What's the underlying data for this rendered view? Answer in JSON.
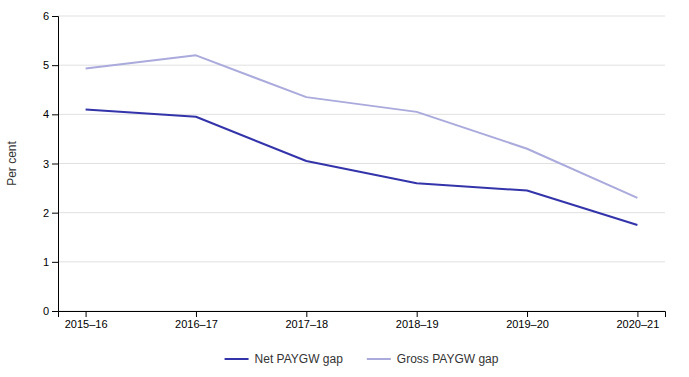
{
  "chart_data": {
    "type": "line",
    "categories": [
      "2015–16",
      "2016–17",
      "2017–18",
      "2018–19",
      "2019–20",
      "2020–21"
    ],
    "series": [
      {
        "name": "Net PAYGW gap",
        "color": "#3333aa",
        "values": [
          4.1,
          3.95,
          3.05,
          2.6,
          2.45,
          1.75
        ]
      },
      {
        "name": "Gross PAYGW gap",
        "color": "#aaaadd",
        "values": [
          4.93,
          5.2,
          4.35,
          4.05,
          3.3,
          2.3
        ]
      }
    ],
    "y_label": "Per cent",
    "ylim": [
      0,
      6
    ],
    "yticks": [
      0,
      1,
      2,
      3,
      4,
      5,
      6
    ],
    "grid": true,
    "legend": "bottom"
  }
}
